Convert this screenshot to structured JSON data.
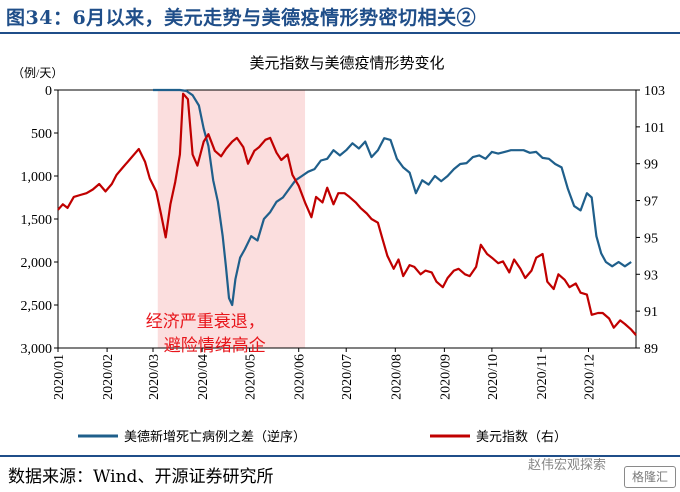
{
  "header": {
    "title": "图34：6月以来，美元走势与美德疫情形势密切相关②"
  },
  "footer": {
    "source": "数据来源：Wind、开源证券研究所"
  },
  "watermark": {
    "text": "赵伟宏观探索",
    "badge": "格隆汇"
  },
  "chart_data": {
    "type": "line",
    "title": "美元指数与美德疫情形势变化",
    "left_axis_unit": "（例/天）",
    "left_axis": {
      "ticks": [
        0,
        500,
        1000,
        1500,
        2000,
        2500,
        3000
      ],
      "tick_labels": [
        "0",
        "500",
        "1,000",
        "1,500",
        "2,000",
        "2,500",
        "3,000"
      ],
      "range": [
        0,
        3000
      ],
      "inverted": true
    },
    "right_axis": {
      "ticks": [
        89,
        91,
        93,
        95,
        97,
        99,
        101,
        103
      ],
      "tick_labels": [
        "89",
        "91",
        "93",
        "95",
        "97",
        "99",
        "101",
        "103"
      ],
      "range": [
        89,
        103
      ]
    },
    "x_axis": {
      "tick_labels": [
        "2020/01",
        "2020/02",
        "2020/03",
        "2020/04",
        "2020/05",
        "2020/06",
        "2020/07",
        "2020/08",
        "2020/09",
        "2020/10",
        "2020/11",
        "2020/12"
      ],
      "range": [
        "2020-01-01",
        "2020-12-31"
      ]
    },
    "shaded_region": {
      "from": "2020-03-04",
      "to": "2020-06-05",
      "color": "#fbdede",
      "annotation": [
        "经济严重衰退，",
        "避险情绪高企"
      ]
    },
    "series": [
      {
        "name": "美德新增死亡病例之差（逆序）",
        "axis": "left",
        "color": "#1f5f8b",
        "points": [
          [
            "2020-03-01",
            0
          ],
          [
            "2020-03-10",
            0
          ],
          [
            "2020-03-18",
            0
          ],
          [
            "2020-03-22",
            10
          ],
          [
            "2020-03-26",
            60
          ],
          [
            "2020-03-30",
            180
          ],
          [
            "2020-04-02",
            450
          ],
          [
            "2020-04-05",
            650
          ],
          [
            "2020-04-08",
            1050
          ],
          [
            "2020-04-11",
            1300
          ],
          [
            "2020-04-14",
            1700
          ],
          [
            "2020-04-16",
            2050
          ],
          [
            "2020-04-18",
            2420
          ],
          [
            "2020-04-20",
            2500
          ],
          [
            "2020-04-22",
            2200
          ],
          [
            "2020-04-25",
            1950
          ],
          [
            "2020-04-28",
            1850
          ],
          [
            "2020-05-02",
            1700
          ],
          [
            "2020-05-06",
            1750
          ],
          [
            "2020-05-10",
            1500
          ],
          [
            "2020-05-14",
            1420
          ],
          [
            "2020-05-18",
            1300
          ],
          [
            "2020-05-22",
            1250
          ],
          [
            "2020-05-26",
            1150
          ],
          [
            "2020-05-30",
            1050
          ],
          [
            "2020-06-03",
            1000
          ],
          [
            "2020-06-07",
            950
          ],
          [
            "2020-06-11",
            920
          ],
          [
            "2020-06-15",
            820
          ],
          [
            "2020-06-19",
            800
          ],
          [
            "2020-06-23",
            700
          ],
          [
            "2020-06-27",
            760
          ],
          [
            "2020-07-01",
            700
          ],
          [
            "2020-07-05",
            620
          ],
          [
            "2020-07-09",
            680
          ],
          [
            "2020-07-13",
            600
          ],
          [
            "2020-07-17",
            780
          ],
          [
            "2020-07-21",
            700
          ],
          [
            "2020-07-25",
            560
          ],
          [
            "2020-07-29",
            580
          ],
          [
            "2020-08-02",
            800
          ],
          [
            "2020-08-06",
            900
          ],
          [
            "2020-08-10",
            960
          ],
          [
            "2020-08-14",
            1200
          ],
          [
            "2020-08-18",
            1050
          ],
          [
            "2020-08-22",
            1100
          ],
          [
            "2020-08-26",
            1000
          ],
          [
            "2020-08-30",
            1060
          ],
          [
            "2020-09-03",
            1000
          ],
          [
            "2020-09-07",
            920
          ],
          [
            "2020-09-11",
            860
          ],
          [
            "2020-09-15",
            850
          ],
          [
            "2020-09-19",
            780
          ],
          [
            "2020-09-23",
            760
          ],
          [
            "2020-09-27",
            800
          ],
          [
            "2020-10-01",
            720
          ],
          [
            "2020-10-05",
            740
          ],
          [
            "2020-10-09",
            720
          ],
          [
            "2020-10-13",
            700
          ],
          [
            "2020-10-17",
            700
          ],
          [
            "2020-10-21",
            700
          ],
          [
            "2020-10-25",
            730
          ],
          [
            "2020-10-29",
            720
          ],
          [
            "2020-11-02",
            790
          ],
          [
            "2020-11-06",
            800
          ],
          [
            "2020-11-10",
            860
          ],
          [
            "2020-11-14",
            900
          ],
          [
            "2020-11-18",
            1150
          ],
          [
            "2020-11-22",
            1350
          ],
          [
            "2020-11-26",
            1400
          ],
          [
            "2020-11-30",
            1200
          ],
          [
            "2020-12-03",
            1250
          ],
          [
            "2020-12-06",
            1700
          ],
          [
            "2020-12-09",
            1900
          ],
          [
            "2020-12-12",
            2000
          ],
          [
            "2020-12-16",
            2050
          ],
          [
            "2020-12-20",
            2000
          ],
          [
            "2020-12-24",
            2050
          ],
          [
            "2020-12-28",
            2000
          ]
        ]
      },
      {
        "name": "美元指数（右）",
        "axis": "right",
        "color": "#c00000",
        "points": [
          [
            "2020-01-01",
            96.5
          ],
          [
            "2020-01-04",
            96.8
          ],
          [
            "2020-01-07",
            96.6
          ],
          [
            "2020-01-11",
            97.2
          ],
          [
            "2020-01-15",
            97.3
          ],
          [
            "2020-01-19",
            97.4
          ],
          [
            "2020-01-23",
            97.6
          ],
          [
            "2020-01-27",
            97.9
          ],
          [
            "2020-01-31",
            97.5
          ],
          [
            "2020-02-04",
            97.9
          ],
          [
            "2020-02-07",
            98.4
          ],
          [
            "2020-02-11",
            98.8
          ],
          [
            "2020-02-15",
            99.2
          ],
          [
            "2020-02-19",
            99.6
          ],
          [
            "2020-02-21",
            99.8
          ],
          [
            "2020-02-25",
            99.1
          ],
          [
            "2020-02-28",
            98.2
          ],
          [
            "2020-03-03",
            97.5
          ],
          [
            "2020-03-06",
            96.3
          ],
          [
            "2020-03-09",
            95.0
          ],
          [
            "2020-03-12",
            96.8
          ],
          [
            "2020-03-15",
            98.0
          ],
          [
            "2020-03-18",
            99.5
          ],
          [
            "2020-03-20",
            102.8
          ],
          [
            "2020-03-23",
            102.5
          ],
          [
            "2020-03-26",
            99.5
          ],
          [
            "2020-03-29",
            98.9
          ],
          [
            "2020-04-02",
            100.2
          ],
          [
            "2020-04-05",
            100.6
          ],
          [
            "2020-04-09",
            99.7
          ],
          [
            "2020-04-13",
            99.4
          ],
          [
            "2020-04-16",
            99.8
          ],
          [
            "2020-04-20",
            100.2
          ],
          [
            "2020-04-23",
            100.4
          ],
          [
            "2020-04-27",
            99.9
          ],
          [
            "2020-04-30",
            99.0
          ],
          [
            "2020-05-04",
            99.7
          ],
          [
            "2020-05-07",
            99.9
          ],
          [
            "2020-05-11",
            100.3
          ],
          [
            "2020-05-14",
            100.4
          ],
          [
            "2020-05-18",
            99.6
          ],
          [
            "2020-05-21",
            99.2
          ],
          [
            "2020-05-25",
            99.5
          ],
          [
            "2020-05-28",
            98.4
          ],
          [
            "2020-06-01",
            97.8
          ],
          [
            "2020-06-05",
            96.9
          ],
          [
            "2020-06-09",
            96.1
          ],
          [
            "2020-06-12",
            97.2
          ],
          [
            "2020-06-16",
            96.9
          ],
          [
            "2020-06-19",
            97.7
          ],
          [
            "2020-06-23",
            96.8
          ],
          [
            "2020-06-26",
            97.4
          ],
          [
            "2020-06-30",
            97.4
          ],
          [
            "2020-07-03",
            97.2
          ],
          [
            "2020-07-07",
            96.9
          ],
          [
            "2020-07-10",
            96.6
          ],
          [
            "2020-07-14",
            96.3
          ],
          [
            "2020-07-17",
            96.0
          ],
          [
            "2020-07-21",
            95.8
          ],
          [
            "2020-07-24",
            94.9
          ],
          [
            "2020-07-27",
            94.0
          ],
          [
            "2020-07-31",
            93.3
          ],
          [
            "2020-08-03",
            93.8
          ],
          [
            "2020-08-06",
            92.9
          ],
          [
            "2020-08-10",
            93.5
          ],
          [
            "2020-08-13",
            93.4
          ],
          [
            "2020-08-17",
            93.0
          ],
          [
            "2020-08-20",
            93.2
          ],
          [
            "2020-08-24",
            93.1
          ],
          [
            "2020-08-27",
            92.6
          ],
          [
            "2020-08-31",
            92.3
          ],
          [
            "2020-09-03",
            92.8
          ],
          [
            "2020-09-07",
            93.2
          ],
          [
            "2020-09-10",
            93.3
          ],
          [
            "2020-09-14",
            93.0
          ],
          [
            "2020-09-17",
            92.9
          ],
          [
            "2020-09-21",
            93.4
          ],
          [
            "2020-09-24",
            94.6
          ],
          [
            "2020-09-28",
            94.1
          ],
          [
            "2020-10-01",
            93.9
          ],
          [
            "2020-10-05",
            93.6
          ],
          [
            "2020-10-08",
            93.7
          ],
          [
            "2020-10-12",
            93.1
          ],
          [
            "2020-10-15",
            93.8
          ],
          [
            "2020-10-19",
            93.3
          ],
          [
            "2020-10-22",
            92.8
          ],
          [
            "2020-10-26",
            93.2
          ],
          [
            "2020-10-29",
            93.9
          ],
          [
            "2020-11-02",
            94.1
          ],
          [
            "2020-11-05",
            92.6
          ],
          [
            "2020-11-09",
            92.2
          ],
          [
            "2020-11-12",
            93.0
          ],
          [
            "2020-11-16",
            92.7
          ],
          [
            "2020-11-19",
            92.3
          ],
          [
            "2020-11-23",
            92.5
          ],
          [
            "2020-11-26",
            92.0
          ],
          [
            "2020-11-30",
            91.9
          ],
          [
            "2020-12-03",
            90.8
          ],
          [
            "2020-12-07",
            90.9
          ],
          [
            "2020-12-10",
            90.9
          ],
          [
            "2020-12-14",
            90.6
          ],
          [
            "2020-12-17",
            90.1
          ],
          [
            "2020-12-21",
            90.5
          ],
          [
            "2020-12-24",
            90.3
          ],
          [
            "2020-12-28",
            90.0
          ],
          [
            "2020-12-31",
            89.7
          ]
        ]
      }
    ],
    "legend": {
      "placement": "bottom",
      "entries": [
        {
          "label": "美德新增死亡病例之差（逆序）",
          "color": "#1f5f8b"
        },
        {
          "label": "美元指数（右）",
          "color": "#c00000"
        }
      ]
    },
    "grid": false
  }
}
